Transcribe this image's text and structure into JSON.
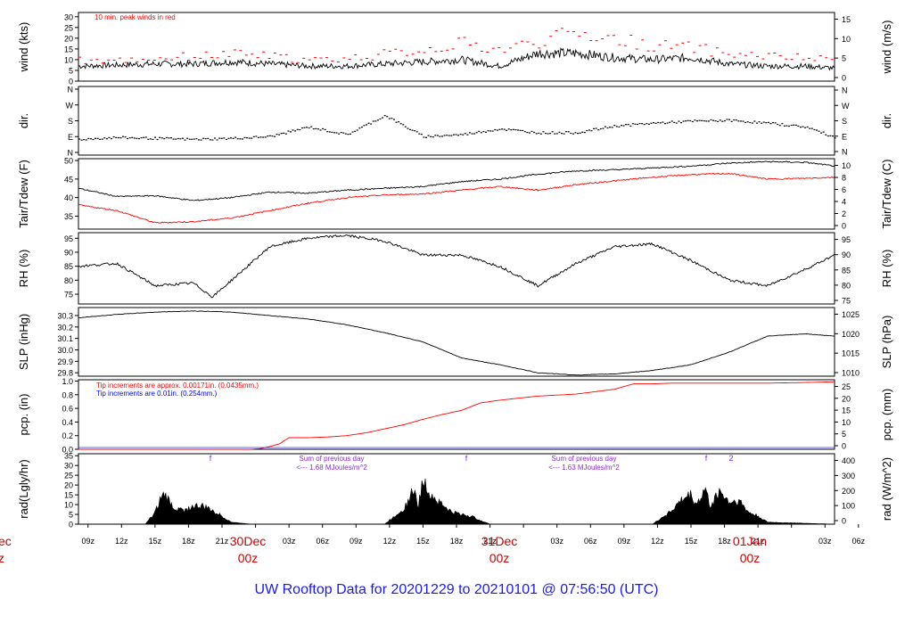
{
  "chart_data": {
    "type": "line",
    "title": "UW Rooftop Data for 20201229  to  20210101 @ 07:56:50  (UTC)",
    "x_ticks": [
      "09z",
      "12z",
      "15z",
      "18z",
      "21z",
      "00z",
      "03z",
      "06z",
      "09z",
      "12z",
      "15z",
      "18z",
      "21z",
      "00z",
      "03z",
      "06z",
      "09z",
      "12z",
      "15z",
      "18z",
      "21z",
      "00z",
      "03z",
      "06z"
    ],
    "day_labels": [
      {
        "day": "30Dec",
        "hour": "00z"
      },
      {
        "day": "31Dec",
        "hour": "00z"
      },
      {
        "day": "01Jan",
        "hour": "00z"
      }
    ],
    "left_edge_labels": [
      "ec",
      "z"
    ],
    "panels": [
      {
        "id": "wind",
        "ylabel": "wind (kts)",
        "ylabel_right": "wind (m/s)",
        "yticks": [
          "0",
          "5",
          "10",
          "15",
          "20",
          "25",
          "30"
        ],
        "yticks_right": [
          "0",
          "5",
          "10",
          "15"
        ],
        "ylim": [
          0,
          32
        ],
        "annotations": [
          "10 min. peak winds in red"
        ],
        "series": [
          {
            "color": "#000000",
            "x": [
              0,
              4,
              8,
              12,
              16,
              20,
              24,
              28,
              32,
              36,
              40,
              44,
              48,
              52,
              56,
              60,
              64,
              68,
              72,
              76,
              79
            ],
            "values": [
              7,
              7.5,
              8,
              8,
              9,
              8,
              7,
              7,
              8,
              9,
              10,
              7,
              13,
              13,
              11,
              10,
              11,
              8,
              7,
              7,
              6
            ]
          },
          {
            "color": "#ff0000",
            "x": [
              0,
              4,
              8,
              12,
              16,
              20,
              24,
              28,
              32,
              36,
              40,
              44,
              48,
              52,
              56,
              60,
              64,
              68,
              72,
              76,
              79
            ],
            "values": [
              9,
              9,
              10,
              11,
              12,
              11,
              9,
              10,
              12,
              14,
              17,
              14,
              18,
              22,
              19,
              16,
              15,
              12,
              11,
              10,
              9
            ]
          }
        ]
      },
      {
        "id": "dir",
        "ylabel": "dir.",
        "ylabel_right": "dir.",
        "yticks": [
          "N",
          "E",
          "S",
          "W",
          "N"
        ],
        "yticks_right": [
          "N",
          "E",
          "S",
          "W",
          "N"
        ],
        "ylim": [
          0,
          360
        ],
        "series": [
          {
            "color": "#000000",
            "x": [
              0,
              4,
              8,
              12,
              16,
              20,
              24,
              28,
              32,
              36,
              40,
              44,
              48,
              52,
              56,
              60,
              64,
              68,
              72,
              76,
              79
            ],
            "values": [
              85,
              95,
              90,
              85,
              90,
              100,
              150,
              110,
              210,
              100,
              110,
              140,
              120,
              120,
              155,
              170,
              180,
              185,
              170,
              150,
              95
            ]
          }
        ]
      },
      {
        "id": "temp",
        "ylabel": "Tair/Tdew (F)",
        "ylabel_right": "Tair/Tdew (C)",
        "yticks": [
          "35",
          "40",
          "45",
          "50"
        ],
        "yticks_right": [
          "0",
          "2",
          "4",
          "6",
          "8",
          "10"
        ],
        "ylim": [
          31.5,
          50.5
        ],
        "series": [
          {
            "name": "Tair",
            "color": "#000000",
            "x": [
              0,
              4,
              8,
              12,
              16,
              20,
              24,
              28,
              32,
              36,
              40,
              44,
              48,
              52,
              56,
              60,
              64,
              68,
              72,
              76,
              79
            ],
            "values": [
              42.5,
              40.3,
              40.5,
              39.2,
              40,
              41.5,
              41.2,
              42,
              42.5,
              43,
              44.3,
              45,
              46.3,
              47.2,
              47.5,
              48,
              48.5,
              49.3,
              49.7,
              49.5,
              48.5
            ]
          },
          {
            "name": "Tdew",
            "color": "#ff0000",
            "x": [
              0,
              4,
              8,
              12,
              16,
              20,
              24,
              28,
              32,
              36,
              40,
              44,
              48,
              52,
              56,
              60,
              64,
              68,
              72,
              76,
              79
            ],
            "values": [
              38,
              36.5,
              33.2,
              33.5,
              34.5,
              36.5,
              38.5,
              40,
              40.7,
              41,
              42,
              43,
              42,
              43.5,
              44.5,
              45.5,
              46.2,
              46.5,
              45,
              45.2,
              45.5
            ]
          }
        ]
      },
      {
        "id": "rh",
        "ylabel": "RH (%)",
        "ylabel_right": "RH (%)",
        "yticks": [
          "75",
          "80",
          "85",
          "90",
          "95"
        ],
        "yticks_right": [
          "75",
          "80",
          "85",
          "90",
          "95"
        ],
        "ylim": [
          71.5,
          97
        ],
        "series": [
          {
            "color": "#000000",
            "x": [
              0,
              4,
              8,
              12,
              14,
              16,
              20,
              24,
              28,
              32,
              36,
              40,
              44,
              48,
              52,
              56,
              60,
              64,
              68,
              72,
              76,
              79
            ],
            "values": [
              85,
              86,
              78,
              79,
              74,
              80,
              92,
              95,
              96,
              94,
              89,
              89,
              85,
              78,
              86,
              92,
              93,
              87,
              80,
              78,
              84,
              89
            ]
          }
        ]
      },
      {
        "id": "slp",
        "ylabel": "SLP (inHg)",
        "ylabel_right": "SLP (hPa)",
        "yticks": [
          "29.8",
          "29.9",
          "30.0",
          "30.1",
          "30.2",
          "30.3"
        ],
        "yticks_right": [
          "1010",
          "1015",
          "1020",
          "1025"
        ],
        "ylim": [
          29.77,
          30.37
        ],
        "series": [
          {
            "color": "#000000",
            "x": [
              0,
              4,
              8,
              12,
              16,
              20,
              24,
              28,
              32,
              36,
              40,
              44,
              48,
              52,
              56,
              60,
              64,
              68,
              72,
              76,
              79
            ],
            "values": [
              30.28,
              30.31,
              30.33,
              30.34,
              30.33,
              30.3,
              30.27,
              30.22,
              30.15,
              30.07,
              29.93,
              29.87,
              29.8,
              29.78,
              29.79,
              29.82,
              29.87,
              29.98,
              30.12,
              30.14,
              30.12
            ]
          }
        ]
      },
      {
        "id": "pcp",
        "ylabel": "pcp. (in)",
        "ylabel_right": "pcp. (mm)",
        "yticks": [
          "0.0",
          "0.2",
          "0.4",
          "0.6",
          "0.8",
          "1.0"
        ],
        "yticks_right": [
          "0",
          "5",
          "10",
          "15",
          "20",
          "25"
        ],
        "ylim": [
          0,
          1.02
        ],
        "annotations": [
          "Tip increments are approx. 0.00171in. (0.0435mm.)",
          "Tip increments are 0.01in. (0.254mm.)"
        ],
        "series": [
          {
            "color": "#ff0000",
            "x": [
              0,
              18,
              19,
              20,
              21,
              22,
              24,
              26,
              28,
              30,
              32,
              34,
              36,
              38,
              40,
              42,
              44,
              46,
              48,
              52,
              56,
              58,
              60,
              62,
              64,
              68,
              72,
              76,
              79
            ],
            "values": [
              0,
              0,
              0.01,
              0.04,
              0.08,
              0.17,
              0.17,
              0.18,
              0.2,
              0.24,
              0.3,
              0.36,
              0.44,
              0.51,
              0.57,
              0.68,
              0.72,
              0.75,
              0.78,
              0.81,
              0.88,
              0.96,
              0.96,
              0.97,
              0.97,
              0.97,
              0.97,
              0.98,
              0.99
            ]
          }
        ]
      },
      {
        "id": "rad",
        "ylabel": "rad(Lgly/hr)",
        "ylabel_right": "rad (W/m^2)",
        "yticks": [
          "0",
          "5",
          "10",
          "15",
          "20",
          "25",
          "30",
          "35"
        ],
        "yticks_right": [
          "0",
          "100",
          "200",
          "300",
          "400"
        ],
        "ylim": [
          0,
          36
        ],
        "annotations": [
          {
            "text": "Sum of previous day",
            "day": "0"
          },
          {
            "text": "<--- 1.68 MJoules/m^2",
            "day": "0"
          },
          {
            "text": "Sum of previous day",
            "day": "1"
          },
          {
            "text": "<--- 1.63 MJoules/m^2",
            "day": "1"
          }
        ],
        "markers": [
          "f",
          "f",
          "f",
          "2"
        ],
        "series": [
          {
            "color": "#000000",
            "type": "area",
            "x": [
              0,
              7,
              8,
              8.5,
              9,
              10,
              11,
              12,
              13,
              14,
              15,
              16,
              18,
              32,
              33,
              34,
              34.5,
              35,
              35.5,
              36,
              37,
              38,
              39,
              40,
              41,
              42,
              43,
              60,
              62,
              63,
              64,
              64.5,
              65,
              65.5,
              66,
              67,
              68,
              69,
              70,
              71,
              72,
              79
            ],
            "values": [
              0,
              0,
              6,
              12,
              15,
              8,
              7,
              9,
              9,
              7,
              4,
              1,
              0,
              0,
              4,
              8,
              12,
              18,
              9,
              22,
              14,
              10,
              6,
              5,
              4,
              2,
              0,
              0,
              7,
              12,
              15,
              10,
              13,
              18,
              9,
              17,
              11,
              12,
              6,
              4,
              1,
              0
            ]
          }
        ]
      }
    ]
  }
}
